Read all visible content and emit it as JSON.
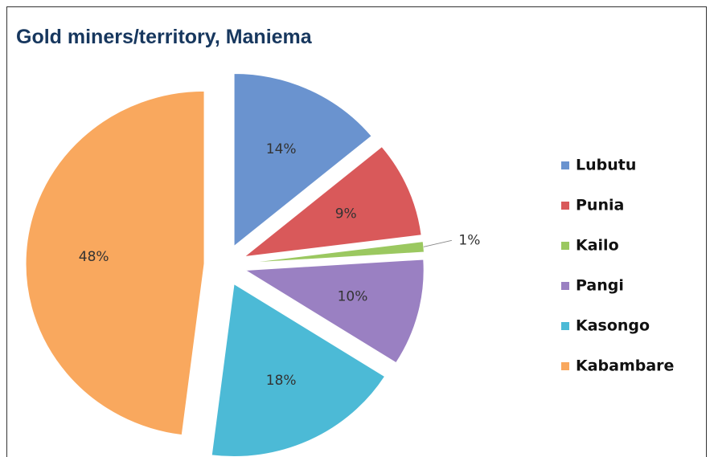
{
  "chart_data": {
    "type": "pie",
    "title": "Gold miners/territory, Maniema",
    "categories": [
      "Lubutu",
      "Punia",
      "Kailo",
      "Pangi",
      "Kasongo",
      "Kabambare"
    ],
    "values": [
      14,
      9,
      1,
      10,
      18,
      48
    ],
    "value_labels": [
      "14%",
      "9%",
      "1%",
      "10%",
      "18%",
      "48%"
    ],
    "colors": [
      "#6a93cf",
      "#d9595a",
      "#9bc860",
      "#9a80c2",
      "#4cbad6",
      "#f9a85e"
    ],
    "legend": "right"
  }
}
